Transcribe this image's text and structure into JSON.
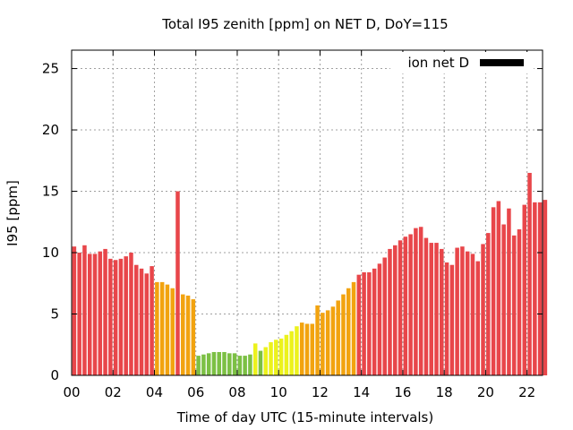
{
  "chart_data": {
    "type": "bar",
    "title": "Total I95 zenith [ppm] on NET D, DoY=115",
    "xlabel": "Time of day UTC (15-minute intervals)",
    "ylabel": "I95 [ppm]",
    "legend": {
      "label": "ion net D",
      "color": "#000000",
      "placement": "top-right"
    },
    "xlim": [
      0,
      22.75
    ],
    "ylim": [
      0,
      26.5
    ],
    "x_ticks": [
      {
        "value": 0,
        "label": "00"
      },
      {
        "value": 2,
        "label": "02"
      },
      {
        "value": 4,
        "label": "04"
      },
      {
        "value": 6,
        "label": "06"
      },
      {
        "value": 8,
        "label": "08"
      },
      {
        "value": 10,
        "label": "10"
      },
      {
        "value": 12,
        "label": "12"
      },
      {
        "value": 14,
        "label": "14"
      },
      {
        "value": 16,
        "label": "16"
      },
      {
        "value": 18,
        "label": "18"
      },
      {
        "value": 20,
        "label": "20"
      },
      {
        "value": 22,
        "label": "22"
      }
    ],
    "y_ticks": [
      {
        "value": 0,
        "label": "0"
      },
      {
        "value": 5,
        "label": "5"
      },
      {
        "value": 10,
        "label": "10"
      },
      {
        "value": 15,
        "label": "15"
      },
      {
        "value": 20,
        "label": "20"
      },
      {
        "value": 25,
        "label": "25"
      }
    ],
    "grid": true,
    "bar_interval_hours": 0.25,
    "values": [
      10.5,
      10.0,
      10.6,
      9.9,
      9.9,
      10.1,
      10.3,
      9.5,
      9.4,
      9.5,
      9.7,
      10.0,
      9.0,
      8.7,
      8.3,
      8.9,
      7.6,
      7.6,
      7.4,
      7.1,
      15.0,
      6.6,
      6.5,
      6.2,
      1.6,
      1.7,
      1.8,
      1.9,
      1.9,
      1.9,
      1.8,
      1.8,
      1.6,
      1.6,
      1.7,
      2.6,
      2.0,
      2.3,
      2.7,
      2.9,
      3.0,
      3.3,
      3.6,
      4.0,
      4.3,
      4.2,
      4.2,
      5.7,
      5.1,
      5.3,
      5.6,
      6.1,
      6.6,
      7.1,
      7.6,
      8.2,
      8.4,
      8.4,
      8.7,
      9.1,
      9.6,
      10.3,
      10.6,
      11.0,
      11.3,
      11.5,
      12.0,
      12.1,
      11.2,
      10.8,
      10.8,
      10.3,
      9.2,
      9.0,
      10.4,
      10.5,
      10.1,
      9.9,
      9.3,
      10.7,
      11.6,
      13.7,
      14.2,
      12.3,
      13.6,
      11.4,
      11.9,
      13.9,
      16.5,
      14.1,
      14.1,
      14.3
    ],
    "colors": {
      "red": "#e8464a",
      "orange": "#f2a30f",
      "yellow": "#ecf21c",
      "green": "#7cc044",
      "legend_swatch": "#000000"
    },
    "bar_color_classes": [
      "red",
      "red",
      "red",
      "red",
      "red",
      "red",
      "red",
      "red",
      "red",
      "red",
      "red",
      "red",
      "red",
      "red",
      "red",
      "red",
      "orange",
      "orange",
      "orange",
      "orange",
      "red",
      "orange",
      "orange",
      "orange",
      "green",
      "green",
      "green",
      "green",
      "green",
      "green",
      "green",
      "green",
      "green",
      "green",
      "green",
      "yellow",
      "green",
      "yellow",
      "yellow",
      "yellow",
      "yellow",
      "yellow",
      "yellow",
      "yellow",
      "orange",
      "orange",
      "orange",
      "orange",
      "orange",
      "orange",
      "orange",
      "orange",
      "orange",
      "orange",
      "orange",
      "red",
      "red",
      "red",
      "red",
      "red",
      "red",
      "red",
      "red",
      "red",
      "red",
      "red",
      "red",
      "red",
      "red",
      "red",
      "red",
      "red",
      "red",
      "red",
      "red",
      "red",
      "red",
      "red",
      "red",
      "red",
      "red",
      "red",
      "red",
      "red",
      "red",
      "red",
      "red",
      "red",
      "red",
      "red",
      "red",
      "red"
    ]
  }
}
